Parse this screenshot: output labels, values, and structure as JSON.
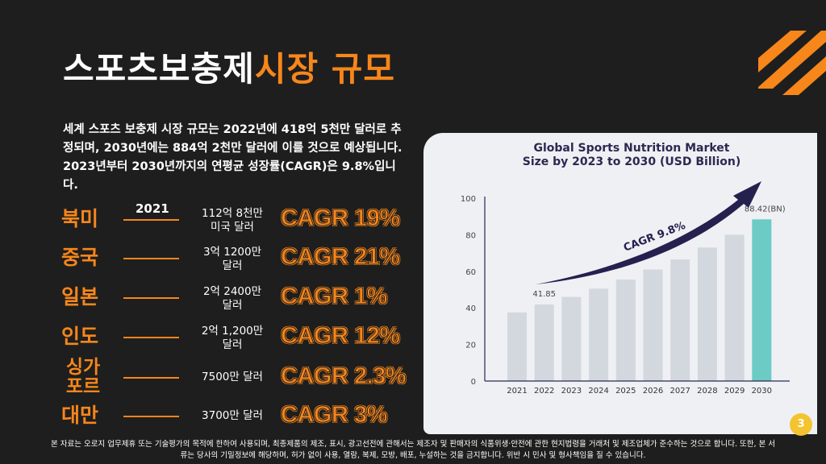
{
  "title": {
    "part1": "스포츠보충제",
    "part2": "시장 규모"
  },
  "paragraph": "세계 스포츠 보충제 시장 규모는 2022년에 418억 5천만 달러로 추정되며, 2030년에는 884억 2천만 달러에 이를 것으로 예상됩니다. 2023년부터 2030년까지의 연평균 성장률(CAGR)은 9.8%입니다.",
  "year_label": "2021",
  "regions": [
    {
      "name": "북미",
      "value_line1": "112억 8천만",
      "value_line2": "미국 달러",
      "cagr": "CAGR 19%"
    },
    {
      "name": "중국",
      "value_line1": "3억 1200만",
      "value_line2": "달러",
      "cagr": "CAGR 21%"
    },
    {
      "name": "일본",
      "value_line1": "2억 2400만",
      "value_line2": "달러",
      "cagr": "CAGR 1%"
    },
    {
      "name": "인도",
      "value_line1": "2억 1,200만",
      "value_line2": "달러",
      "cagr": "CAGR 12%"
    },
    {
      "name": "싱가포르",
      "value_line1": "7500만 달러",
      "value_line2": "",
      "cagr": "CAGR 2.3%"
    },
    {
      "name": "대만",
      "value_line1": "3700만 달러",
      "value_line2": "",
      "cagr": "CAGR 3%"
    }
  ],
  "page_number": "3",
  "footer": {
    "line1": "본 자료는 오로지 업무제휴 또는 기술평가의 목적에 한하여 사용되며, 최종제품의 제조, 표시, 광고선전에 관해서는 제조자 및 판매자의 식품위생·안전에 관한 현지법령을 거래처 및 제조업체가 준수하는 것으로 합니다. 또한, 본 서",
    "line2": "류는 당사의 기밀정보에 해당하며, 허가 없이 사용, 열람, 복제, 모방, 배포, 누설하는 것을 금지합니다. 위반 시 민사 및 형사책임을 질 수 있습니다."
  },
  "colors": {
    "accent": "#f7861b",
    "bar": "#d3d8df",
    "highlight": "#6ccbc4",
    "arrow": "#24214f"
  },
  "chart_data": {
    "type": "bar",
    "title": "Global Sports Nutrition Market Size by 2023 to 2030 (USD Billion)",
    "title_line1": "Global Sports Nutrition Market",
    "title_line2": "Size by 2023 to 2030 (USD Billion)",
    "categories": [
      "2021",
      "2022",
      "2023",
      "2024",
      "2025",
      "2026",
      "2027",
      "2028",
      "2029",
      "2030"
    ],
    "values": [
      37.5,
      41.85,
      46,
      50.5,
      55.5,
      61,
      66.5,
      73,
      80,
      88.42
    ],
    "data_labels": {
      "2022": "41.85",
      "2030": "88.42(BN)"
    },
    "annotation": "CAGR 9.8%",
    "yticks": [
      0,
      20,
      40,
      60,
      80,
      100
    ],
    "ylim": [
      0,
      100
    ],
    "xlabel": "",
    "ylabel": ""
  }
}
